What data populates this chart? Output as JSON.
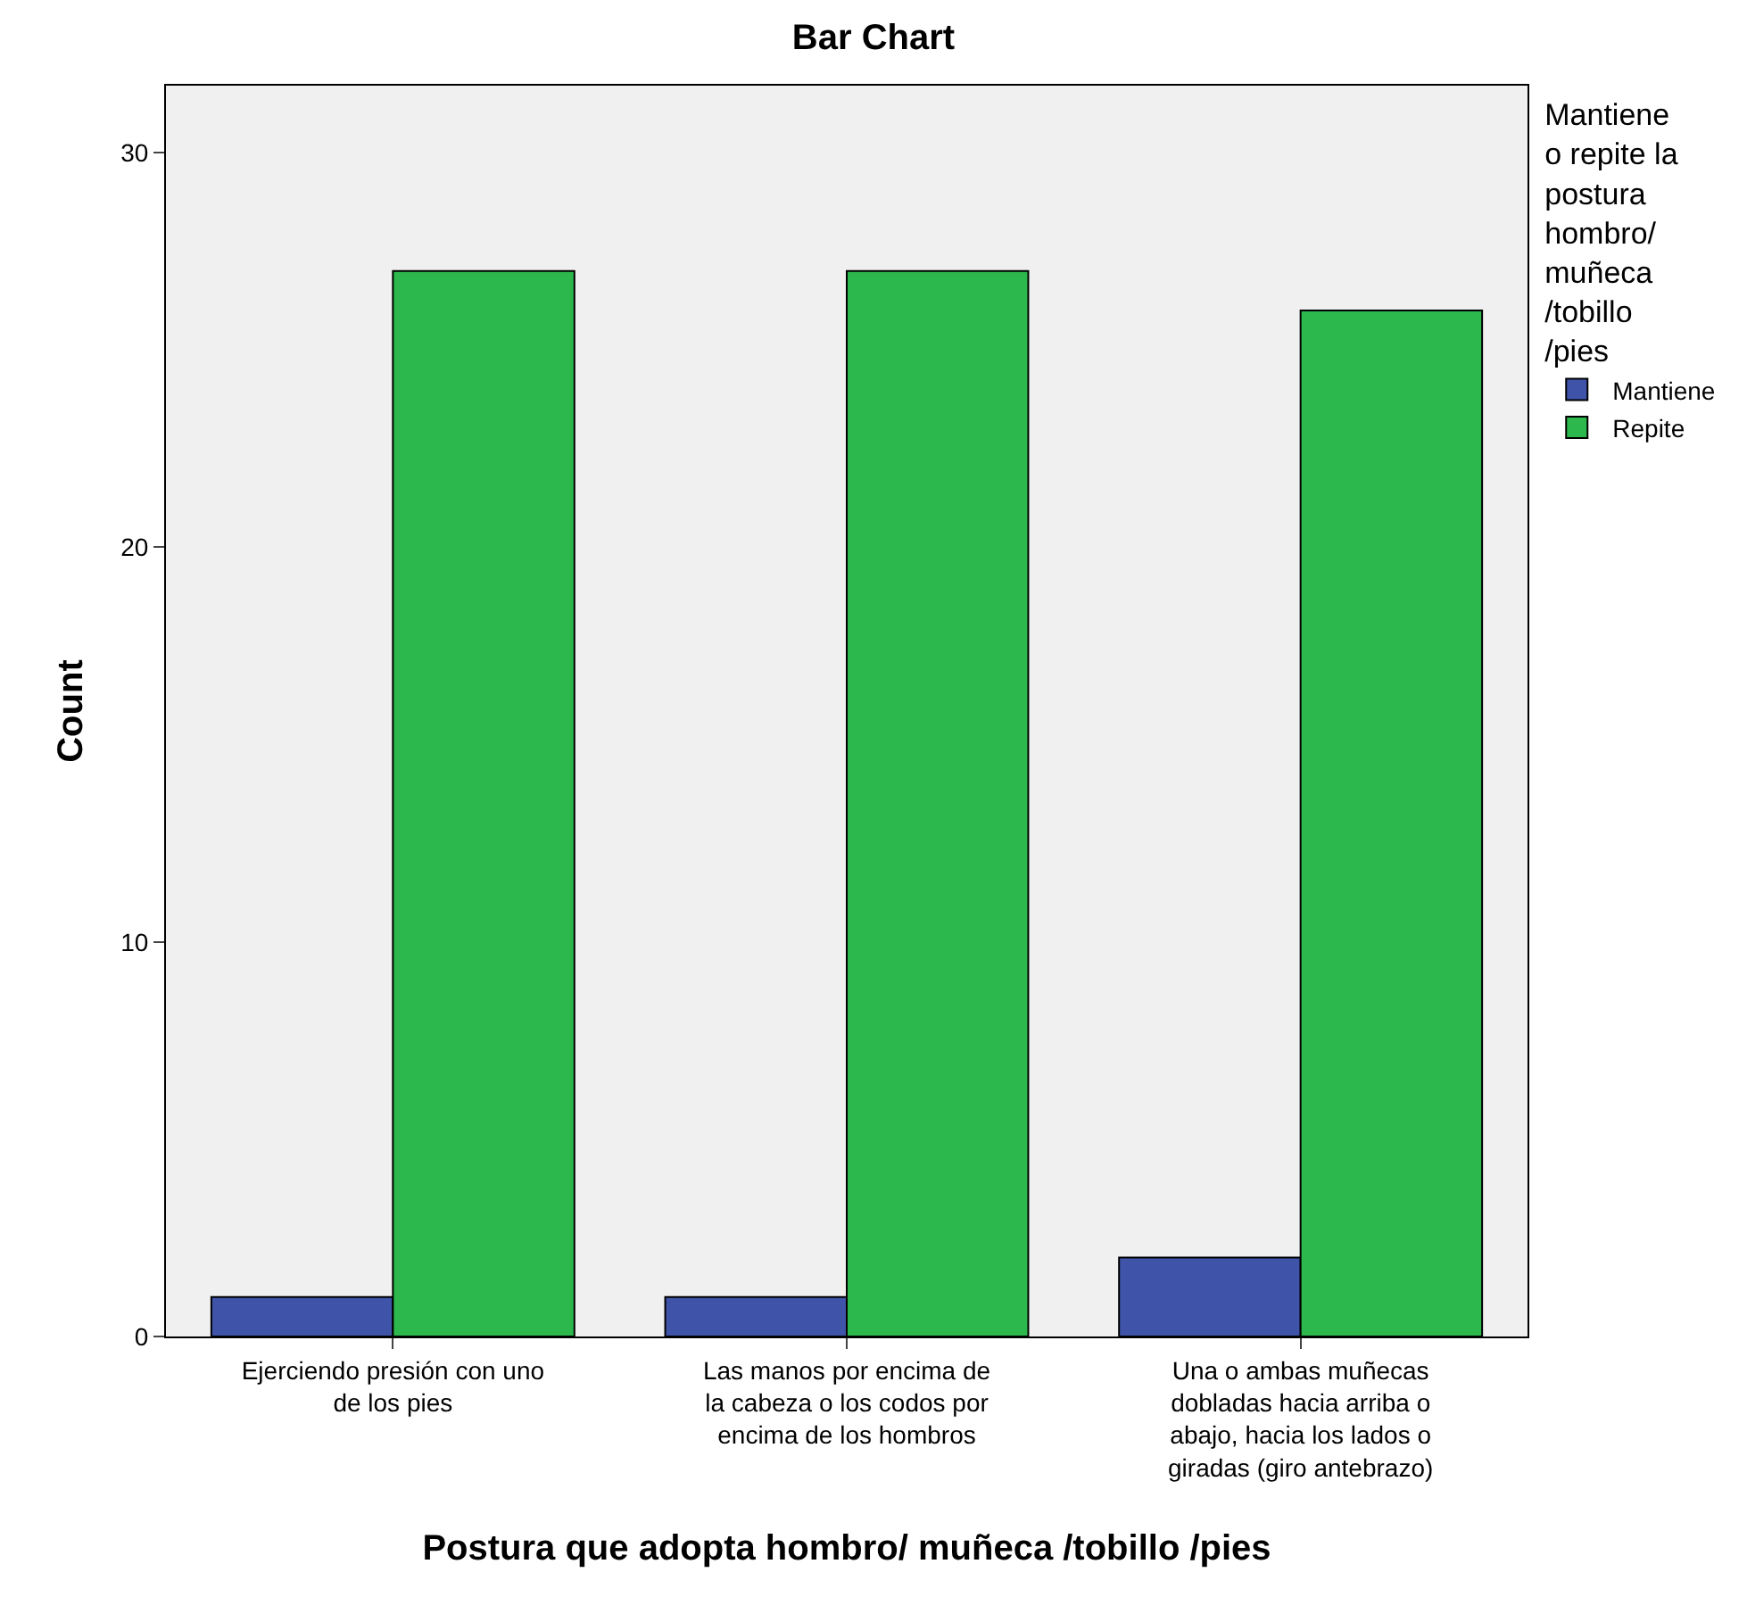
{
  "chart_data": {
    "type": "bar",
    "title": "Bar Chart",
    "xlabel": "Postura que adopta hombro/ muñeca /tobillo /pies",
    "ylabel": "Count",
    "legend_title": "Mantiene\no repite la\npostura\nhombro/\nmuñeca\n/tobillo\n/pies",
    "categories": [
      "Ejerciendo presión con uno\nde los pies",
      "Las manos por encima de\nla cabeza o los codos por\nencima de los hombros",
      "Una o ambas muñecas\ndobladas hacia arriba o\nabajo, hacia los lados o\ngiradas (giro antebrazo)"
    ],
    "series": [
      {
        "name": "Mantiene",
        "color": "#3f54a8",
        "values": [
          1,
          1,
          2
        ]
      },
      {
        "name": "Repite",
        "color": "#2db84d",
        "values": [
          27,
          27,
          26
        ]
      }
    ],
    "ylim": [
      0,
      31.7
    ],
    "yticks": [
      0,
      10,
      20,
      30
    ],
    "grid": false,
    "legend": "right"
  }
}
